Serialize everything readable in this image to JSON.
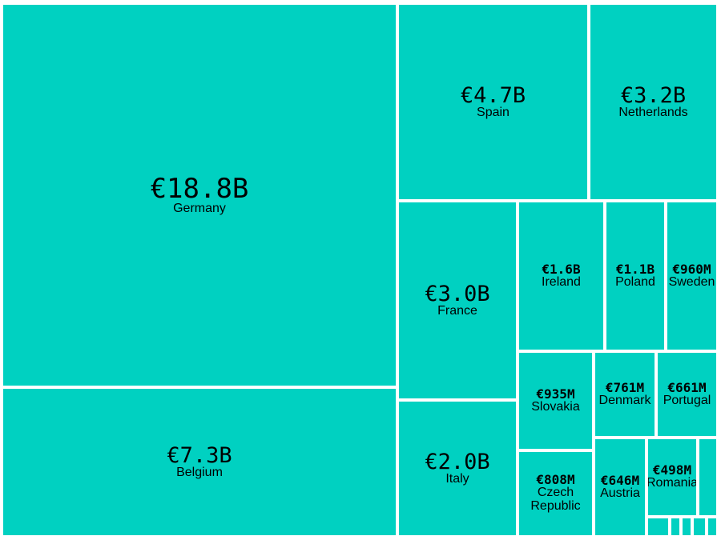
{
  "chart_data": {
    "type": "treemap",
    "categories": [
      "Germany",
      "Belgium",
      "Spain",
      "Netherlands",
      "France",
      "Italy",
      "Ireland",
      "Poland",
      "Sweden",
      "Slovakia",
      "Czech Republic",
      "Denmark",
      "Portugal",
      "Austria",
      "Romania"
    ],
    "values": [
      18800000000,
      7300000000,
      4700000000,
      3200000000,
      3000000000,
      2000000000,
      1600000000,
      1100000000,
      960000000,
      935000000,
      808000000,
      761000000,
      661000000,
      646000000,
      498000000
    ],
    "value_labels": [
      "€18.8B",
      "€7.3B",
      "€4.7B",
      "€3.2B",
      "€3.0B",
      "€2.0B",
      "€1.6B",
      "€1.1B",
      "€960M",
      "€935M",
      "€808M",
      "€761M",
      "€661M",
      "€646M",
      "€498M"
    ],
    "color": "#00d1c1"
  }
}
